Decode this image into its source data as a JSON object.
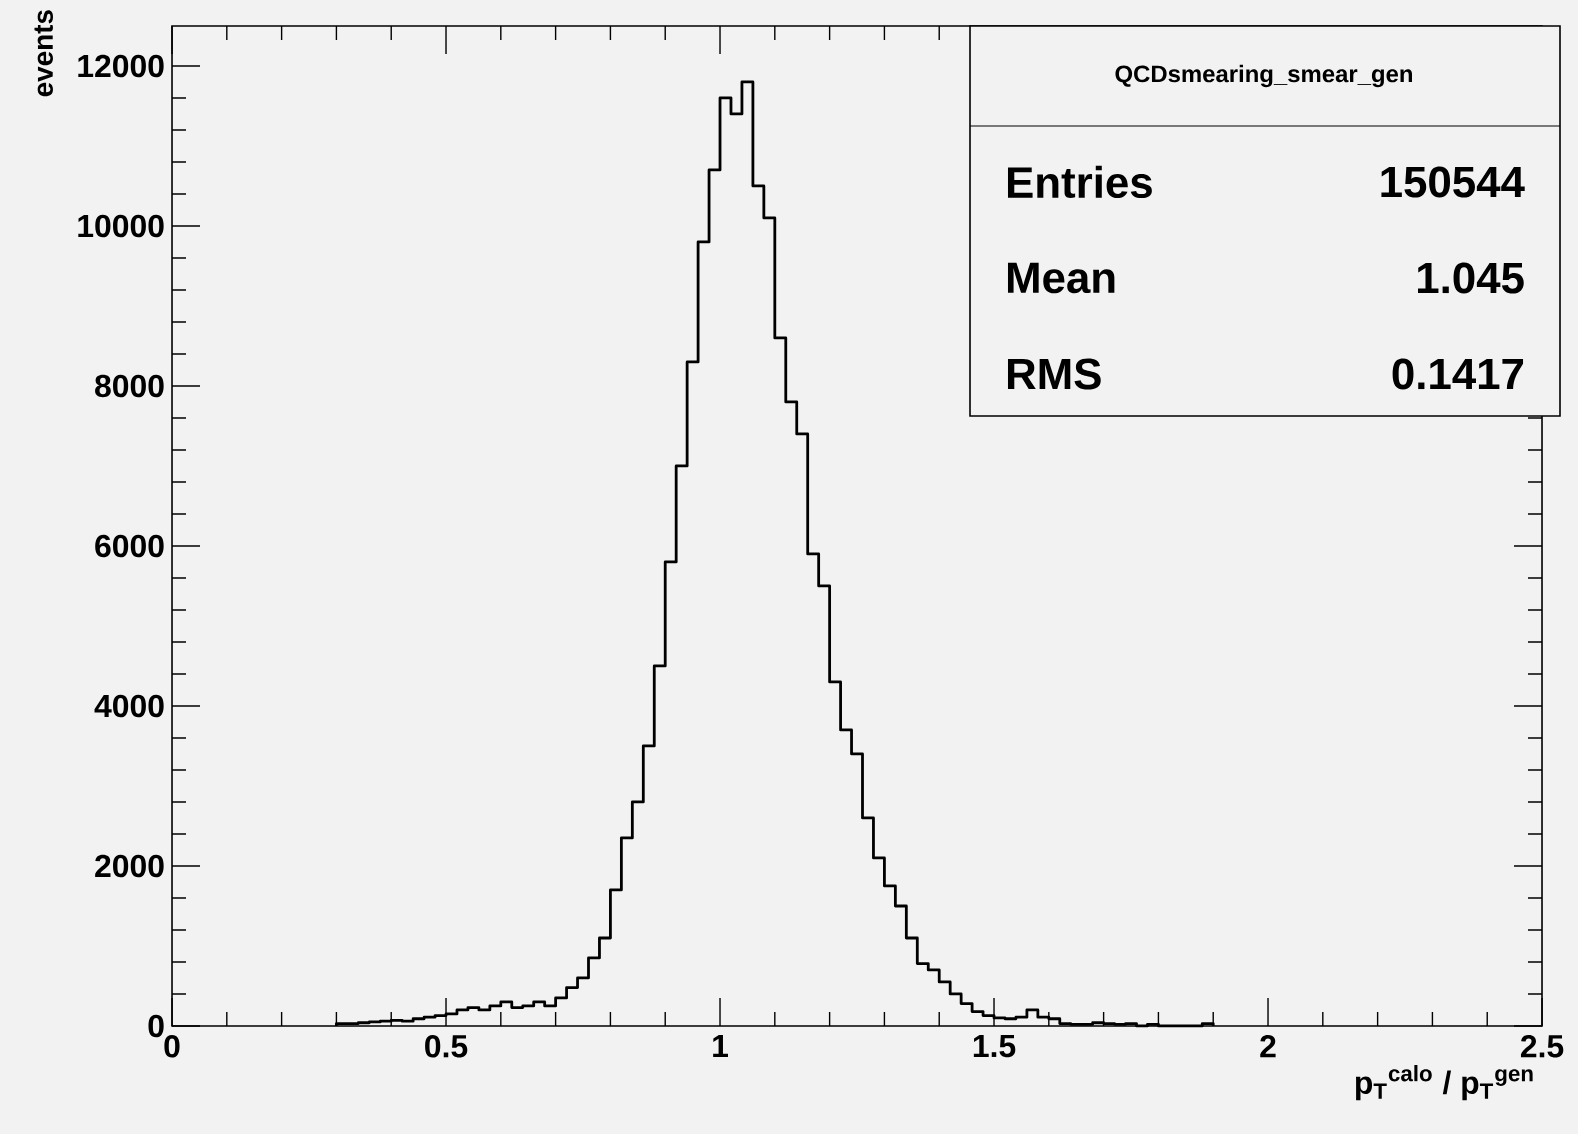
{
  "chart_data": {
    "type": "histogram",
    "title": "QCDsmearing_smear_gen",
    "xlabel": "p$_{T}$$^{calo}$ / p$_{T}$$^{gen}$",
    "ylabel": "events",
    "annotations": [
      "Entries",
      "150544",
      "Mean",
      "1.045",
      "RMS",
      "0.1417"
    ],
    "bins": [
      0.3,
      0.32,
      0.34,
      0.36,
      0.38,
      0.4,
      0.42,
      0.44,
      0.46,
      0.48,
      0.5,
      0.52,
      0.54,
      0.56,
      0.58,
      0.6,
      0.62,
      0.64,
      0.66,
      0.68,
      0.7,
      0.72,
      0.74,
      0.76,
      0.78,
      0.8,
      0.82,
      0.84,
      0.86,
      0.88,
      0.9,
      0.92,
      0.94,
      0.96,
      0.98,
      1.0,
      1.02,
      1.04,
      1.06,
      1.08,
      1.1,
      1.12,
      1.14,
      1.16,
      1.18,
      1.2,
      1.22,
      1.24,
      1.26,
      1.28,
      1.3,
      1.32,
      1.34,
      1.36,
      1.38,
      1.4,
      1.42,
      1.44,
      1.46,
      1.48,
      1.5,
      1.52,
      1.54,
      1.56,
      1.58,
      1.6,
      1.62,
      1.64,
      1.66,
      1.68,
      1.7,
      1.72,
      1.74,
      1.76,
      1.78,
      1.8,
      1.82,
      1.84,
      1.86,
      1.88,
      1.9
    ],
    "values": [
      30,
      30,
      40,
      50,
      60,
      70,
      60,
      90,
      110,
      130,
      150,
      200,
      230,
      200,
      250,
      300,
      230,
      250,
      300,
      250,
      350,
      480,
      600,
      850,
      1100,
      1700,
      2350,
      2800,
      3500,
      4500,
      5800,
      7000,
      8300,
      9800,
      10700,
      11600,
      11400,
      11800,
      10500,
      10100,
      8600,
      7800,
      7400,
      5900,
      5500,
      4300,
      3700,
      3400,
      2600,
      2100,
      1750,
      1500,
      1100,
      780,
      700,
      550,
      400,
      280,
      180,
      130,
      100,
      90,
      110,
      200,
      110,
      90,
      30,
      20,
      20,
      40,
      30,
      20,
      30,
      0,
      20,
      0,
      0,
      0,
      0,
      30
    ],
    "color": "#000000",
    "xlim": [
      0,
      2.5
    ],
    "ylim": [
      0,
      12500
    ],
    "xticks": [
      0,
      0.5,
      1,
      1.5,
      2,
      2.5
    ],
    "yticks": [
      0,
      2000,
      4000,
      6000,
      8000,
      10000,
      12000
    ],
    "grid": false
  }
}
